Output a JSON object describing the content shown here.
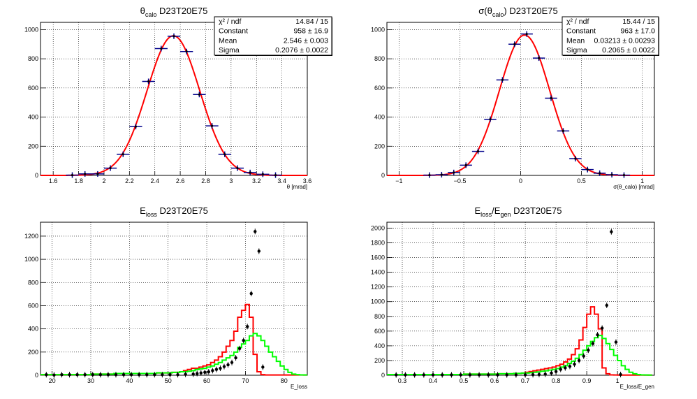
{
  "colors": {
    "fit": "#ff0000",
    "marker_blue": "#00008b",
    "marker_black": "#000000",
    "hist_red": "#ff0000",
    "hist_green": "#00ff00",
    "grid": "#000000"
  },
  "chart_data": [
    {
      "type": "scatter",
      "title_main": "θ",
      "title_sub": "calo",
      "title_tail": " D23T20E75",
      "xlabel": "θ [mrad]",
      "xlim": [
        1.5,
        3.6
      ],
      "ylim": [
        0,
        1050
      ],
      "xticks": [
        "1.6",
        "1.8",
        "2",
        "2.2",
        "2.4",
        "2.6",
        "2.8",
        "3",
        "3.2",
        "3.4",
        "3.6"
      ],
      "xtick_values": [
        1.6,
        1.8,
        2.0,
        2.2,
        2.4,
        2.6,
        2.8,
        3.0,
        3.2,
        3.4,
        3.6
      ],
      "yticks": [
        "0",
        "200",
        "400",
        "600",
        "800",
        "1000"
      ],
      "ytick_values": [
        0,
        200,
        400,
        600,
        800,
        1000
      ],
      "points": {
        "x": [
          1.75,
          1.85,
          1.95,
          2.05,
          2.15,
          2.25,
          2.35,
          2.45,
          2.55,
          2.65,
          2.75,
          2.85,
          2.95,
          3.05,
          3.15,
          3.25,
          3.35
        ],
        "y": [
          2,
          10,
          10,
          50,
          145,
          335,
          645,
          870,
          955,
          850,
          555,
          340,
          145,
          50,
          20,
          8,
          2
        ],
        "xerr": 0.05
      },
      "fit": {
        "const": 958,
        "mean": 2.546,
        "sigma": 0.2076
      },
      "stats": [
        {
          "label": "χ² / ndf",
          "value": "14.84 / 15"
        },
        {
          "label": "Constant",
          "value": "958 ± 16.9"
        },
        {
          "label": "Mean",
          "value": "2.546 ± 0.003"
        },
        {
          "label": "Sigma",
          "value": "0.2076 ± 0.0022"
        }
      ]
    },
    {
      "type": "scatter",
      "title_main": "σ(θ",
      "title_sub": "calo",
      "title_tail": ") D23T20E75",
      "xlabel": "σ(θ_calo) [mrad]",
      "xlim": [
        -1.1,
        1.1
      ],
      "ylim": [
        0,
        1050
      ],
      "xticks": [
        "−1",
        "−0.5",
        "0",
        "0.5",
        "1"
      ],
      "xtick_values": [
        -1,
        -0.5,
        0,
        0.5,
        1
      ],
      "yticks": [
        "0",
        "200",
        "400",
        "600",
        "800",
        "1000"
      ],
      "ytick_values": [
        0,
        200,
        400,
        600,
        800,
        1000
      ],
      "points": {
        "x": [
          -0.75,
          -0.65,
          -0.55,
          -0.45,
          -0.35,
          -0.25,
          -0.15,
          -0.05,
          0.05,
          0.15,
          0.25,
          0.35,
          0.45,
          0.55,
          0.65,
          0.75,
          0.85
        ],
        "y": [
          2,
          5,
          20,
          70,
          165,
          385,
          655,
          900,
          970,
          805,
          530,
          305,
          115,
          40,
          15,
          5,
          2
        ],
        "xerr": 0.05
      },
      "fit": {
        "const": 963,
        "mean": 0.03213,
        "sigma": 0.2065
      },
      "stats": [
        {
          "label": "χ² / ndf",
          "value": "15.44 / 15"
        },
        {
          "label": "Constant",
          "value": "963 ± 17.0"
        },
        {
          "label": "Mean",
          "value": "0.03213 ± 0.00293"
        },
        {
          "label": "Sigma",
          "value": "0.2065 ± 0.0022"
        }
      ]
    },
    {
      "type": "histogram",
      "title_main": "E",
      "title_sub": "loss",
      "title_tail": " D23T20E75",
      "xlabel": "E_loss",
      "xlim": [
        17,
        86
      ],
      "ylim": [
        0,
        1320
      ],
      "xticks": [
        "20",
        "30",
        "40",
        "50",
        "60",
        "70",
        "80"
      ],
      "xtick_values": [
        20,
        30,
        40,
        50,
        60,
        70,
        80
      ],
      "yticks": [
        "0",
        "200",
        "400",
        "600",
        "800",
        "1000",
        "1200"
      ],
      "ytick_values": [
        0,
        200,
        400,
        600,
        800,
        1000,
        1200
      ],
      "bin_edges": [
        17,
        18,
        19,
        20,
        21,
        22,
        23,
        24,
        25,
        26,
        27,
        28,
        29,
        30,
        31,
        32,
        33,
        34,
        35,
        36,
        37,
        38,
        39,
        40,
        41,
        42,
        43,
        44,
        45,
        46,
        47,
        48,
        49,
        50,
        51,
        52,
        53,
        54,
        55,
        56,
        57,
        58,
        59,
        60,
        61,
        62,
        63,
        64,
        65,
        66,
        67,
        68,
        69,
        70,
        71,
        72,
        73,
        74,
        75,
        76,
        77,
        78,
        79,
        80,
        81,
        82,
        83,
        84,
        85,
        86
      ],
      "series": [
        {
          "color": "red",
          "values": [
            5,
            5,
            5,
            5,
            5,
            5,
            5,
            5,
            5,
            5,
            5,
            5,
            5,
            10,
            10,
            10,
            10,
            10,
            10,
            15,
            15,
            15,
            15,
            15,
            15,
            15,
            15,
            15,
            15,
            15,
            20,
            20,
            20,
            20,
            25,
            25,
            30,
            40,
            50,
            60,
            60,
            70,
            80,
            90,
            110,
            130,
            160,
            200,
            250,
            300,
            380,
            500,
            560,
            610,
            500,
            180,
            30,
            5,
            2,
            2,
            2,
            2,
            2,
            2,
            2,
            2,
            2,
            2,
            2
          ]
        },
        {
          "color": "green",
          "values": [
            5,
            5,
            5,
            5,
            5,
            5,
            5,
            5,
            5,
            5,
            5,
            5,
            5,
            10,
            10,
            10,
            10,
            10,
            10,
            15,
            15,
            15,
            15,
            15,
            15,
            15,
            15,
            15,
            15,
            15,
            20,
            20,
            20,
            20,
            25,
            25,
            30,
            30,
            35,
            40,
            50,
            55,
            60,
            70,
            80,
            95,
            110,
            130,
            150,
            170,
            200,
            240,
            270,
            300,
            340,
            360,
            340,
            300,
            250,
            200,
            160,
            120,
            80,
            50,
            25,
            10,
            5,
            3,
            2
          ]
        }
      ],
      "markers": {
        "x": [
          18.5,
          20.5,
          22.5,
          24.5,
          26.5,
          28.5,
          30.5,
          32.5,
          34.5,
          36.5,
          38.5,
          40.5,
          42.5,
          44.5,
          46.5,
          48.5,
          50.5,
          52.5,
          54.5,
          56.5,
          57.5,
          58.5,
          59.5,
          60.5,
          61.5,
          62.5,
          63.5,
          64.5,
          65.5,
          66.5,
          67.5,
          68.5,
          69.5,
          70.5,
          71.5,
          72.5,
          73.5,
          74.5
        ],
        "y": [
          5,
          2,
          5,
          5,
          5,
          5,
          5,
          5,
          5,
          5,
          5,
          5,
          5,
          5,
          5,
          5,
          5,
          5,
          8,
          10,
          15,
          20,
          25,
          30,
          40,
          50,
          60,
          75,
          90,
          110,
          150,
          230,
          300,
          420,
          705,
          1240,
          1070,
          70
        ]
      }
    },
    {
      "type": "histogram",
      "title_main": "E",
      "title_sub": "loss",
      "title_mid": "/E",
      "title_sub2": "gen",
      "title_tail": " D23T20E75",
      "xlabel": "E_loss/E_gen",
      "xlim": [
        0.25,
        1.12
      ],
      "ylim": [
        0,
        2080
      ],
      "xticks": [
        "0.3",
        "0.4",
        "0.5",
        "0.6",
        "0.7",
        "0.8",
        "0.9",
        "1"
      ],
      "xtick_values": [
        0.3,
        0.4,
        0.5,
        0.6,
        0.7,
        0.8,
        0.9,
        1.0
      ],
      "yticks": [
        "0",
        "200",
        "400",
        "600",
        "800",
        "1000",
        "1200",
        "1400",
        "1600",
        "1800",
        "2000"
      ],
      "ytick_values": [
        0,
        200,
        400,
        600,
        800,
        1000,
        1200,
        1400,
        1600,
        1800,
        2000
      ],
      "bin_edges": [
        0.25,
        0.2625,
        0.275,
        0.2875,
        0.3,
        0.3125,
        0.325,
        0.3375,
        0.35,
        0.3625,
        0.375,
        0.3875,
        0.4,
        0.4125,
        0.425,
        0.4375,
        0.45,
        0.4625,
        0.475,
        0.4875,
        0.5,
        0.5125,
        0.525,
        0.5375,
        0.55,
        0.5625,
        0.575,
        0.5875,
        0.6,
        0.6125,
        0.625,
        0.6375,
        0.65,
        0.6625,
        0.675,
        0.6875,
        0.7,
        0.7125,
        0.725,
        0.7375,
        0.75,
        0.7625,
        0.775,
        0.7875,
        0.8,
        0.8125,
        0.825,
        0.8375,
        0.85,
        0.8625,
        0.875,
        0.8875,
        0.9,
        0.9125,
        0.925,
        0.9375,
        0.95,
        0.9625,
        0.975,
        0.9875,
        1.0,
        1.0125,
        1.025,
        1.0375,
        1.05,
        1.0625,
        1.075,
        1.0875,
        1.1,
        1.1125
      ],
      "series": [
        {
          "color": "red",
          "values": [
            10,
            10,
            10,
            10,
            10,
            10,
            10,
            10,
            10,
            10,
            10,
            10,
            10,
            10,
            10,
            10,
            10,
            10,
            10,
            10,
            15,
            15,
            15,
            15,
            15,
            15,
            15,
            15,
            15,
            20,
            20,
            20,
            20,
            25,
            25,
            30,
            40,
            50,
            60,
            70,
            80,
            90,
            100,
            110,
            130,
            150,
            180,
            220,
            280,
            360,
            480,
            650,
            830,
            930,
            830,
            630,
            100,
            20,
            5,
            3,
            2,
            2,
            2,
            2,
            2,
            2,
            2,
            2,
            2
          ]
        },
        {
          "color": "green",
          "values": [
            10,
            10,
            10,
            10,
            10,
            10,
            10,
            10,
            10,
            10,
            10,
            10,
            10,
            10,
            10,
            10,
            10,
            10,
            10,
            10,
            15,
            15,
            15,
            15,
            15,
            15,
            15,
            15,
            15,
            20,
            20,
            20,
            20,
            25,
            25,
            30,
            30,
            35,
            40,
            45,
            55,
            60,
            70,
            80,
            90,
            110,
            130,
            160,
            190,
            230,
            280,
            340,
            400,
            460,
            510,
            540,
            500,
            430,
            350,
            270,
            200,
            130,
            80,
            40,
            20,
            10,
            5,
            3,
            2
          ]
        }
      ],
      "markers": {
        "x": [
          0.28,
          0.31,
          0.34,
          0.37,
          0.4,
          0.43,
          0.46,
          0.49,
          0.52,
          0.55,
          0.58,
          0.61,
          0.64,
          0.67,
          0.7,
          0.725,
          0.745,
          0.765,
          0.785,
          0.8,
          0.815,
          0.83,
          0.845,
          0.86,
          0.875,
          0.89,
          0.905,
          0.92,
          0.935,
          0.95,
          0.965,
          0.98,
          0.995,
          1.01
        ],
        "y": [
          5,
          5,
          5,
          5,
          5,
          5,
          5,
          5,
          5,
          5,
          5,
          5,
          5,
          5,
          5,
          8,
          10,
          15,
          30,
          50,
          80,
          100,
          120,
          150,
          200,
          260,
          340,
          430,
          550,
          640,
          950,
          1950,
          450,
          10
        ]
      }
    }
  ]
}
